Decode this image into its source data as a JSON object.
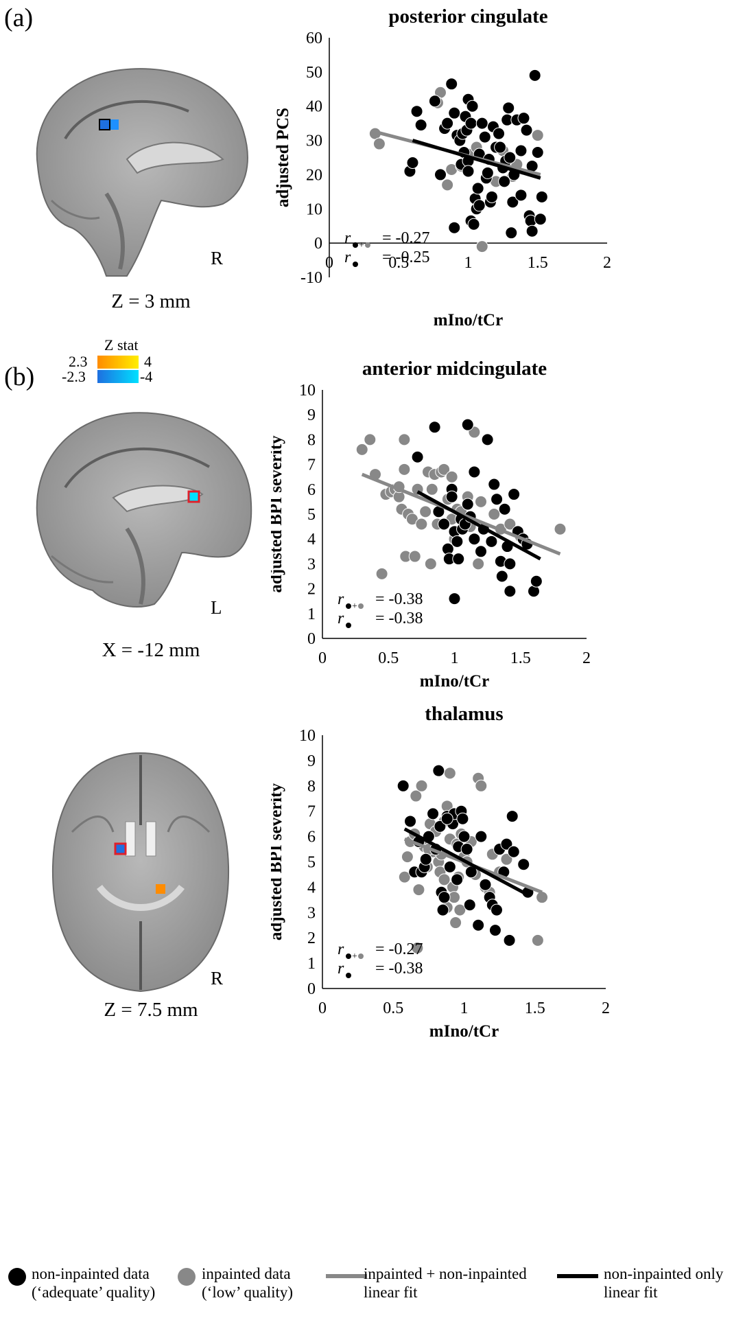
{
  "panels": [
    {
      "label": "(a)"
    },
    {
      "label": "(b)"
    }
  ],
  "brain_images": [
    {
      "caption": "Z = 3 mm",
      "orientation": "R",
      "view": "sagittal"
    },
    {
      "caption": "X = -12 mm",
      "orientation": "L",
      "view": "sagittal"
    },
    {
      "caption": "Z = 7.5 mm",
      "orientation": "R",
      "view": "axial"
    }
  ],
  "colorbar": {
    "title": "Z stat",
    "pos_min": "2.3",
    "pos_max": "4",
    "neg_min": "-2.3",
    "neg_max": "-4",
    "pos_colors": [
      "#ff8c00",
      "#ffee00"
    ],
    "neg_colors": [
      "#1e6fe0",
      "#00e0ff"
    ]
  },
  "legend": {
    "items": [
      {
        "line1": "non-inpainted data",
        "line2": "(‘adequate’ quality)",
        "color": "#000000",
        "kind": "dot"
      },
      {
        "line1": "inpainted data",
        "line2": "(‘low’ quality)",
        "color": "#888888",
        "kind": "dot"
      },
      {
        "line1": "inpainted + non-inpainted",
        "line2": "linear fit",
        "color": "#888888",
        "kind": "line"
      },
      {
        "line1": "non-inpainted only",
        "line2": "linear fit",
        "color": "#000000",
        "kind": "line"
      }
    ]
  },
  "chart_data": [
    {
      "type": "scatter",
      "title": "posterior cingulate",
      "xlabel": "mIno/tCr",
      "ylabel": "adjusted PCS",
      "xlim": [
        0,
        2
      ],
      "ylim": [
        -10,
        60
      ],
      "xticks": [
        "0",
        "0.5",
        "1",
        "1.5",
        "2"
      ],
      "yticks": [
        "-10",
        "0",
        "10",
        "20",
        "30",
        "40",
        "50",
        "60"
      ],
      "stats": [
        {
          "sub": "●+●",
          "value": "= -0.27"
        },
        {
          "sub": "●",
          "value": "= -0.25"
        }
      ],
      "fit_all": {
        "x": [
          0.33,
          1.52
        ],
        "y": [
          32.5,
          20.0
        ]
      },
      "fit_non": {
        "x": [
          0.6,
          1.52
        ],
        "y": [
          30.0,
          19.0
        ]
      },
      "points_inpainted": [
        [
          0.33,
          32
        ],
        [
          0.36,
          29
        ],
        [
          0.8,
          44
        ],
        [
          0.78,
          41
        ],
        [
          0.88,
          21.5
        ],
        [
          0.85,
          17
        ],
        [
          0.95,
          22.5
        ],
        [
          1.0,
          26
        ],
        [
          1.06,
          28
        ],
        [
          1.1,
          -1
        ],
        [
          1.2,
          18
        ],
        [
          1.32,
          19.5
        ],
        [
          1.5,
          31.5
        ],
        [
          1.35,
          23
        ],
        [
          1.25,
          27
        ]
      ],
      "points_non": [
        [
          0.58,
          21
        ],
        [
          0.6,
          23.5
        ],
        [
          0.63,
          38.5
        ],
        [
          0.66,
          34.5
        ],
        [
          0.76,
          41.5
        ],
        [
          0.83,
          33.5
        ],
        [
          0.85,
          35
        ],
        [
          0.88,
          46.5
        ],
        [
          0.9,
          38
        ],
        [
          0.92,
          31.5
        ],
        [
          0.94,
          30
        ],
        [
          0.96,
          32
        ],
        [
          0.98,
          37
        ],
        [
          0.99,
          33
        ],
        [
          1.0,
          42
        ],
        [
          1.03,
          40
        ],
        [
          1.02,
          35
        ],
        [
          0.8,
          20
        ],
        [
          0.9,
          4.5
        ],
        [
          0.95,
          23
        ],
        [
          0.97,
          26.5
        ],
        [
          1.0,
          24
        ],
        [
          1.0,
          21
        ],
        [
          1.02,
          6.5
        ],
        [
          1.04,
          5.5
        ],
        [
          1.05,
          13
        ],
        [
          1.06,
          10
        ],
        [
          1.07,
          16
        ],
        [
          1.08,
          11
        ],
        [
          1.08,
          26
        ],
        [
          1.1,
          35
        ],
        [
          1.12,
          31
        ],
        [
          1.13,
          19
        ],
        [
          1.14,
          20.5
        ],
        [
          1.15,
          24.5
        ],
        [
          1.16,
          12
        ],
        [
          1.17,
          13.5
        ],
        [
          1.18,
          34
        ],
        [
          1.2,
          28
        ],
        [
          1.22,
          32
        ],
        [
          1.23,
          28
        ],
        [
          1.25,
          22
        ],
        [
          1.27,
          24
        ],
        [
          1.28,
          36
        ],
        [
          1.29,
          39.5
        ],
        [
          1.3,
          25
        ],
        [
          1.31,
          3
        ],
        [
          1.32,
          12
        ],
        [
          1.33,
          20
        ],
        [
          1.35,
          36
        ],
        [
          1.38,
          27
        ],
        [
          1.4,
          36.5
        ],
        [
          1.42,
          33
        ],
        [
          1.44,
          8
        ],
        [
          1.45,
          6.5
        ],
        [
          1.46,
          22.5
        ],
        [
          1.48,
          49
        ],
        [
          1.5,
          26.5
        ],
        [
          1.52,
          7
        ],
        [
          1.53,
          13.5
        ],
        [
          1.46,
          3.5
        ],
        [
          1.38,
          14
        ],
        [
          1.26,
          18
        ]
      ]
    },
    {
      "type": "scatter",
      "title": "anterior midcingulate",
      "xlabel": "mIno/tCr",
      "ylabel": "adjusted BPI severity",
      "xlim": [
        0,
        2
      ],
      "ylim": [
        0,
        10
      ],
      "xticks": [
        "0",
        "0.5",
        "1",
        "1.5",
        "2"
      ],
      "yticks": [
        "0",
        "1",
        "2",
        "3",
        "4",
        "5",
        "6",
        "7",
        "8",
        "9",
        "10"
      ],
      "stats": [
        {
          "sub": "●+●",
          "value": "= -0.38"
        },
        {
          "sub": "●",
          "value": "= -0.38"
        }
      ],
      "fit_all": {
        "x": [
          0.3,
          1.8
        ],
        "y": [
          6.6,
          3.4
        ]
      },
      "fit_non": {
        "x": [
          0.72,
          1.65
        ],
        "y": [
          5.9,
          3.2
        ]
      },
      "points_inpainted": [
        [
          0.3,
          7.6
        ],
        [
          0.36,
          8.0
        ],
        [
          0.4,
          6.6
        ],
        [
          0.45,
          2.6
        ],
        [
          0.48,
          5.8
        ],
        [
          0.52,
          5.9
        ],
        [
          0.55,
          6.0
        ],
        [
          0.58,
          5.7
        ],
        [
          0.6,
          5.2
        ],
        [
          0.62,
          8.0
        ],
        [
          0.62,
          6.8
        ],
        [
          0.63,
          3.3
        ],
        [
          0.65,
          5.0
        ],
        [
          0.68,
          4.8
        ],
        [
          0.7,
          3.3
        ],
        [
          0.72,
          6.0
        ],
        [
          0.75,
          4.6
        ],
        [
          0.78,
          5.1
        ],
        [
          0.8,
          6.7
        ],
        [
          0.82,
          3.0
        ],
        [
          0.83,
          6.0
        ],
        [
          0.85,
          6.6
        ],
        [
          0.87,
          4.6
        ],
        [
          0.9,
          6.7
        ],
        [
          0.92,
          6.8
        ],
        [
          0.95,
          5.6
        ],
        [
          0.98,
          4.8
        ],
        [
          1.0,
          4.0
        ],
        [
          1.02,
          5.2
        ],
        [
          1.05,
          5.1
        ],
        [
          1.1,
          5.7
        ],
        [
          1.12,
          4.5
        ],
        [
          1.15,
          8.3
        ],
        [
          1.18,
          3.0
        ],
        [
          1.2,
          5.5
        ],
        [
          1.3,
          5.0
        ],
        [
          1.35,
          4.4
        ],
        [
          1.42,
          4.6
        ],
        [
          1.5,
          4.1
        ],
        [
          1.8,
          4.4
        ],
        [
          0.98,
          6.5
        ],
        [
          0.58,
          6.1
        ]
      ],
      "points_non": [
        [
          0.72,
          7.3
        ],
        [
          0.85,
          8.5
        ],
        [
          0.88,
          5.1
        ],
        [
          0.92,
          4.6
        ],
        [
          0.95,
          3.6
        ],
        [
          0.96,
          3.2
        ],
        [
          0.98,
          6.0
        ],
        [
          0.98,
          5.7
        ],
        [
          1.0,
          4.3
        ],
        [
          1.0,
          1.6
        ],
        [
          1.02,
          3.9
        ],
        [
          1.03,
          3.2
        ],
        [
          1.05,
          4.8
        ],
        [
          1.06,
          4.4
        ],
        [
          1.08,
          4.6
        ],
        [
          1.1,
          8.6
        ],
        [
          1.1,
          5.4
        ],
        [
          1.12,
          4.9
        ],
        [
          1.15,
          6.7
        ],
        [
          1.2,
          3.5
        ],
        [
          1.22,
          4.4
        ],
        [
          1.25,
          8.0
        ],
        [
          1.28,
          3.9
        ],
        [
          1.3,
          6.2
        ],
        [
          1.32,
          5.6
        ],
        [
          1.35,
          3.1
        ],
        [
          1.36,
          2.5
        ],
        [
          1.38,
          5.2
        ],
        [
          1.4,
          3.7
        ],
        [
          1.42,
          1.9
        ],
        [
          1.45,
          5.8
        ],
        [
          1.48,
          4.3
        ],
        [
          1.52,
          4.0
        ],
        [
          1.55,
          3.8
        ],
        [
          1.6,
          1.9
        ],
        [
          1.62,
          2.3
        ],
        [
          1.42,
          3.0
        ],
        [
          1.15,
          4.0
        ]
      ]
    },
    {
      "type": "scatter",
      "title": "thalamus",
      "xlabel": "mIno/tCr",
      "ylabel": "adjusted BPI severity",
      "xlim": [
        0,
        2
      ],
      "ylim": [
        0,
        10
      ],
      "xticks": [
        "0",
        "0.5",
        "1",
        "1.5",
        "2"
      ],
      "yticks": [
        "0",
        "1",
        "2",
        "3",
        "4",
        "5",
        "6",
        "7",
        "8",
        "9",
        "10"
      ],
      "stats": [
        {
          "sub": "●+●",
          "value": "= -0.27"
        },
        {
          "sub": "●",
          "value": "= -0.38"
        }
      ],
      "fit_all": {
        "x": [
          0.58,
          1.55
        ],
        "y": [
          5.9,
          3.8
        ]
      },
      "fit_non": {
        "x": [
          0.58,
          1.45
        ],
        "y": [
          6.3,
          3.7
        ]
      },
      "points_inpainted": [
        [
          0.58,
          4.4
        ],
        [
          0.6,
          5.2
        ],
        [
          0.62,
          5.8
        ],
        [
          0.65,
          6.1
        ],
        [
          0.66,
          7.6
        ],
        [
          0.67,
          1.6
        ],
        [
          0.68,
          3.9
        ],
        [
          0.7,
          8.0
        ],
        [
          0.72,
          5.6
        ],
        [
          0.74,
          4.8
        ],
        [
          0.76,
          6.5
        ],
        [
          0.78,
          5.4
        ],
        [
          0.8,
          6.2
        ],
        [
          0.82,
          5.0
        ],
        [
          0.83,
          4.6
        ],
        [
          0.84,
          5.3
        ],
        [
          0.86,
          6.6
        ],
        [
          0.88,
          7.2
        ],
        [
          0.88,
          3.2
        ],
        [
          0.9,
          8.5
        ],
        [
          0.9,
          5.9
        ],
        [
          0.92,
          4.0
        ],
        [
          0.93,
          3.6
        ],
        [
          0.94,
          2.6
        ],
        [
          0.95,
          5.7
        ],
        [
          0.96,
          4.4
        ],
        [
          0.97,
          3.1
        ],
        [
          1.0,
          5.2
        ],
        [
          1.02,
          5.0
        ],
        [
          1.05,
          5.8
        ],
        [
          1.08,
          4.5
        ],
        [
          1.1,
          8.3
        ],
        [
          1.12,
          8.0
        ],
        [
          1.15,
          4.0
        ],
        [
          1.18,
          3.8
        ],
        [
          1.2,
          5.3
        ],
        [
          1.3,
          5.1
        ],
        [
          1.52,
          1.9
        ],
        [
          1.55,
          3.6
        ],
        [
          0.98,
          6.1
        ],
        [
          0.75,
          5.5
        ],
        [
          0.86,
          4.3
        ],
        [
          1.25,
          4.6
        ]
      ],
      "points_non": [
        [
          0.57,
          8.0
        ],
        [
          0.62,
          6.6
        ],
        [
          0.65,
          4.6
        ],
        [
          0.68,
          5.8
        ],
        [
          0.7,
          4.6
        ],
        [
          0.72,
          4.8
        ],
        [
          0.73,
          5.1
        ],
        [
          0.75,
          6.0
        ],
        [
          0.78,
          6.9
        ],
        [
          0.8,
          5.5
        ],
        [
          0.82,
          8.6
        ],
        [
          0.83,
          6.4
        ],
        [
          0.84,
          3.8
        ],
        [
          0.85,
          3.1
        ],
        [
          0.86,
          3.6
        ],
        [
          0.88,
          6.8
        ],
        [
          0.9,
          4.8
        ],
        [
          0.92,
          6.5
        ],
        [
          0.93,
          6.9
        ],
        [
          0.95,
          4.3
        ],
        [
          0.96,
          5.6
        ],
        [
          0.98,
          7.0
        ],
        [
          0.99,
          6.7
        ],
        [
          1.0,
          6.0
        ],
        [
          1.02,
          5.5
        ],
        [
          1.04,
          3.3
        ],
        [
          1.05,
          4.6
        ],
        [
          1.1,
          2.5
        ],
        [
          1.12,
          6.0
        ],
        [
          1.15,
          4.1
        ],
        [
          1.18,
          3.6
        ],
        [
          1.2,
          3.3
        ],
        [
          1.22,
          2.3
        ],
        [
          1.23,
          3.1
        ],
        [
          1.25,
          5.5
        ],
        [
          1.28,
          4.6
        ],
        [
          1.3,
          5.7
        ],
        [
          1.32,
          1.9
        ],
        [
          1.34,
          6.8
        ],
        [
          1.35,
          5.4
        ],
        [
          1.42,
          4.9
        ],
        [
          1.45,
          3.8
        ],
        [
          0.88,
          6.7
        ]
      ]
    }
  ]
}
